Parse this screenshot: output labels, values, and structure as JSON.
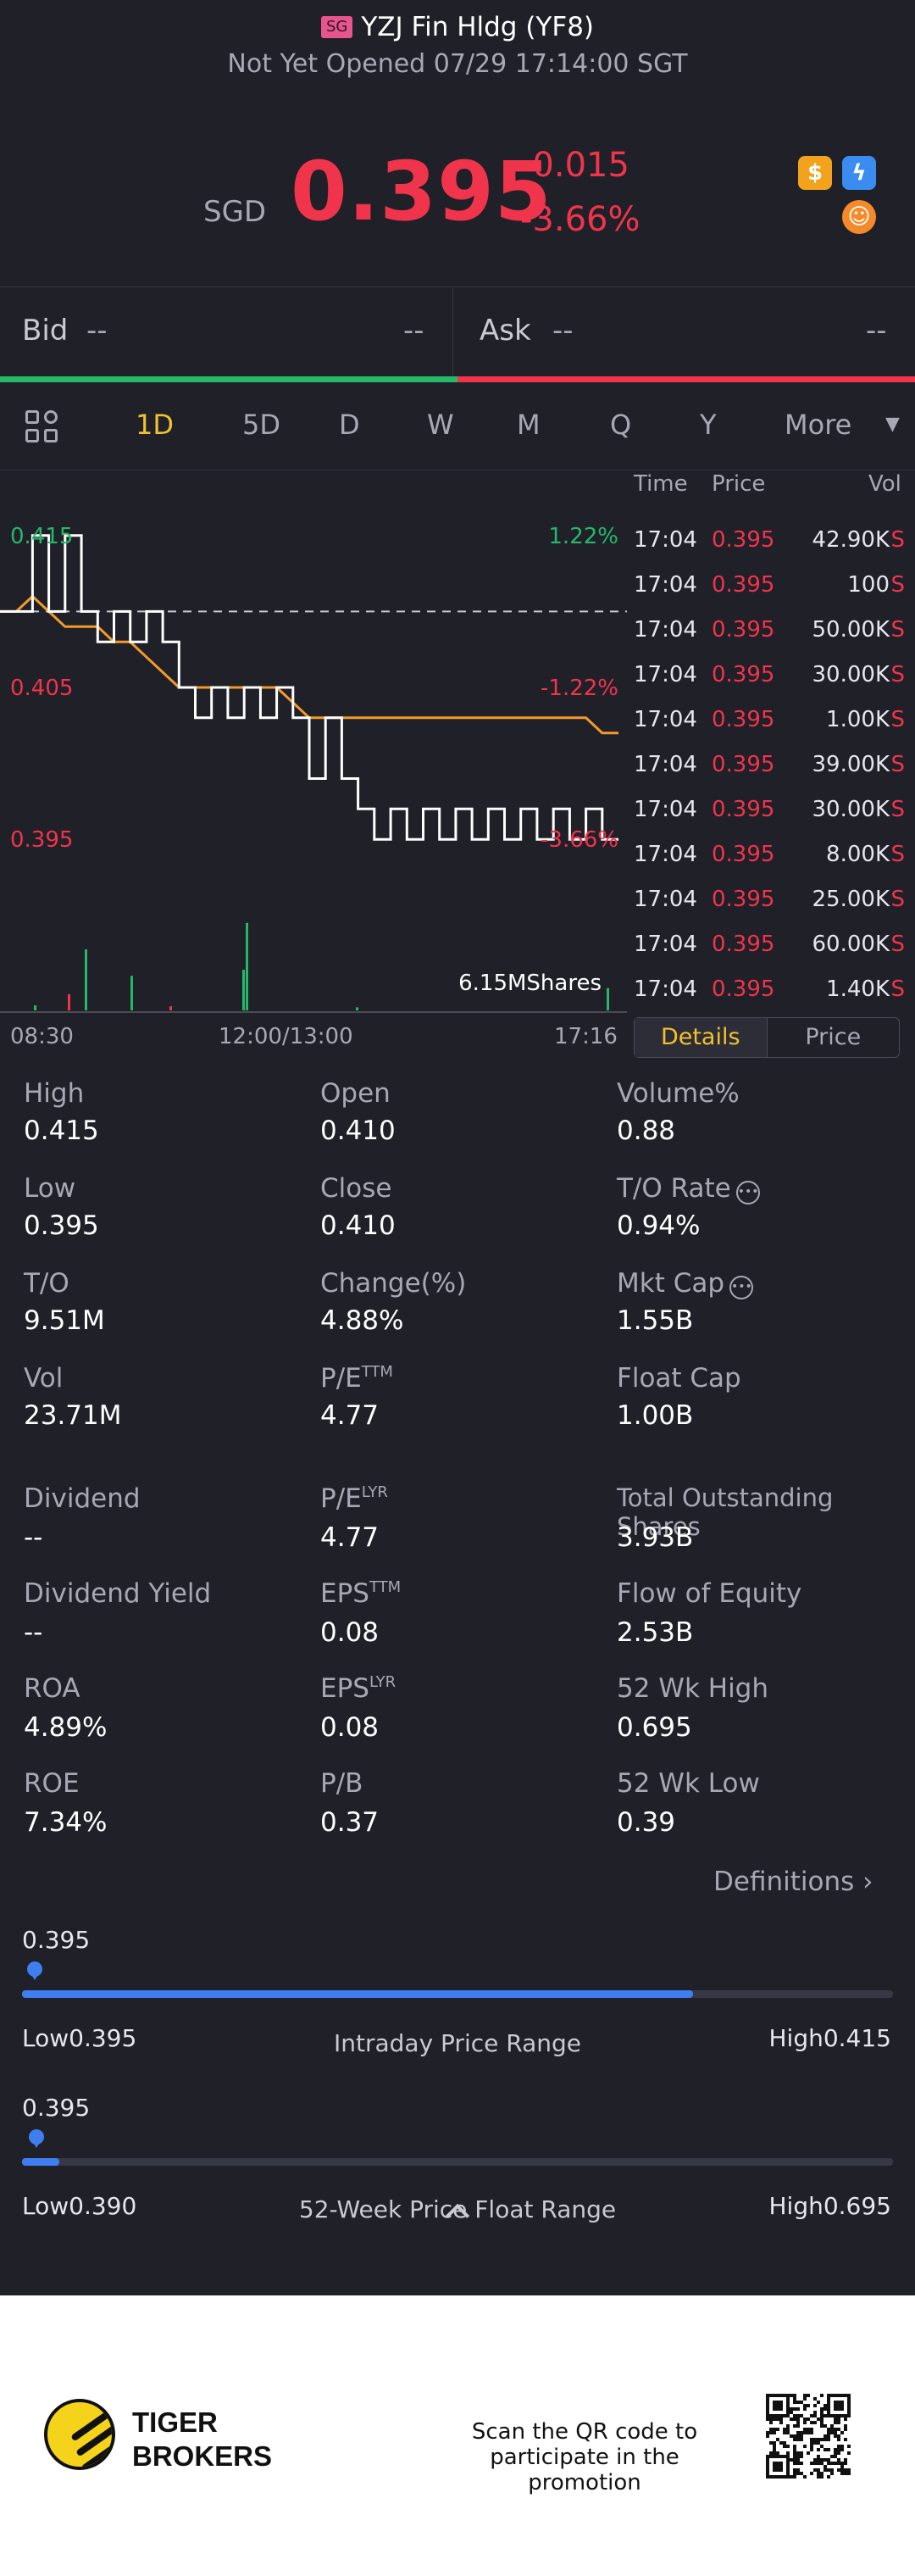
{
  "header": {
    "market_badge": "SG",
    "title": "YZJ Fin Hldg (YF8)",
    "status": "Not Yet Opened 07/29 17:14:00 SGT",
    "currency": "SGD",
    "price": "0.395",
    "change": "-0.015",
    "change_pct": "-3.66%",
    "icons": [
      "dollar-icon",
      "bolt-icon",
      "tiger-icon"
    ]
  },
  "quote": {
    "bid_label": "Bid",
    "bid_price": "--",
    "bid_size": "--",
    "ask_label": "Ask",
    "ask_price": "--",
    "ask_size": "--"
  },
  "tabs": [
    {
      "label": "1D",
      "active": true
    },
    {
      "label": "5D"
    },
    {
      "label": "D"
    },
    {
      "label": "W"
    },
    {
      "label": "M"
    },
    {
      "label": "Q"
    },
    {
      "label": "Y"
    },
    {
      "label": "More"
    }
  ],
  "chart_data": {
    "type": "line",
    "y_left_labels": [
      "0.415",
      "0.405",
      "0.395"
    ],
    "y_right_labels": [
      "1.22%",
      "-1.22%",
      "-3.66%"
    ],
    "x_labels": [
      "08:30",
      "12:00/13:00",
      "17:16"
    ],
    "prev_close": 0.41,
    "ylim": [
      0.393,
      0.417
    ],
    "volume_label": "6.15MShares",
    "series": [
      {
        "values": [
          0.41,
          0.41,
          0.415,
          0.41,
          0.415,
          0.41,
          0.408,
          0.41,
          0.408,
          0.41,
          0.408,
          0.405,
          0.403,
          0.405,
          0.403,
          0.405,
          0.403,
          0.405,
          0.403,
          0.399,
          0.403,
          0.399,
          0.397,
          0.395,
          0.397,
          0.395,
          0.397,
          0.395,
          0.397,
          0.395,
          0.397,
          0.395,
          0.397,
          0.395,
          0.397,
          0.395,
          0.397,
          0.395,
          0.395
        ]
      },
      {
        "values": [
          0.41,
          0.41,
          0.411,
          0.41,
          0.409,
          0.409,
          0.409,
          0.408,
          0.408,
          0.407,
          0.406,
          0.405,
          0.405,
          0.405,
          0.405,
          0.405,
          0.405,
          0.405,
          0.404,
          0.403,
          0.403,
          0.403,
          0.403,
          0.403,
          0.403,
          0.403,
          0.403,
          0.403,
          0.403,
          0.403,
          0.403,
          0.403,
          0.403,
          0.403,
          0.403,
          0.403,
          0.403,
          0.402,
          0.402
        ]
      }
    ]
  },
  "ticks": {
    "headers": {
      "time": "Time",
      "price": "Price",
      "vol": "Vol"
    },
    "rows": [
      {
        "time": "17:04",
        "price": "0.395",
        "vol": "42.90K",
        "side": "S"
      },
      {
        "time": "17:04",
        "price": "0.395",
        "vol": "100",
        "side": "S"
      },
      {
        "time": "17:04",
        "price": "0.395",
        "vol": "50.00K",
        "side": "S"
      },
      {
        "time": "17:04",
        "price": "0.395",
        "vol": "30.00K",
        "side": "S"
      },
      {
        "time": "17:04",
        "price": "0.395",
        "vol": "1.00K",
        "side": "S"
      },
      {
        "time": "17:04",
        "price": "0.395",
        "vol": "39.00K",
        "side": "S"
      },
      {
        "time": "17:04",
        "price": "0.395",
        "vol": "30.00K",
        "side": "S"
      },
      {
        "time": "17:04",
        "price": "0.395",
        "vol": "8.00K",
        "side": "S"
      },
      {
        "time": "17:04",
        "price": "0.395",
        "vol": "25.00K",
        "side": "S"
      },
      {
        "time": "17:04",
        "price": "0.395",
        "vol": "60.00K",
        "side": "S"
      },
      {
        "time": "17:04",
        "price": "0.395",
        "vol": "1.40K",
        "side": "S"
      }
    ],
    "details_label": "Details",
    "price_label": "Price"
  },
  "stats": {
    "high": {
      "label": "High",
      "value": "0.415"
    },
    "open": {
      "label": "Open",
      "value": "0.410"
    },
    "volume_pct": {
      "label": "Volume%",
      "value": "0.88"
    },
    "low": {
      "label": "Low",
      "value": "0.395"
    },
    "close": {
      "label": "Close",
      "value": "0.410"
    },
    "to_rate": {
      "label": "T/O Rate",
      "value": "0.94%"
    },
    "to": {
      "label": "T/O",
      "value": "9.51M"
    },
    "change_pct": {
      "label": "Change(%)",
      "value": "4.88%"
    },
    "mkt_cap": {
      "label": "Mkt Cap",
      "value": "1.55B"
    },
    "vol": {
      "label": "Vol",
      "value": "23.71M"
    },
    "pe_ttm": {
      "label": "P/E",
      "sup": "TTM",
      "value": "4.77"
    },
    "float_cap": {
      "label": "Float Cap",
      "value": "1.00B"
    },
    "dividend": {
      "label": "Dividend",
      "value": "--"
    },
    "pe_lyr": {
      "label": "P/E",
      "sup": "LYR",
      "value": "4.77"
    },
    "total_shares": {
      "label": "Total Outstanding Shares",
      "value": "3.93B"
    },
    "div_yield": {
      "label": "Dividend Yield",
      "value": "--"
    },
    "eps_ttm": {
      "label": "EPS",
      "sup": "TTM",
      "value": "0.08"
    },
    "flow_equity": {
      "label": "Flow of Equity",
      "value": "2.53B"
    },
    "roa": {
      "label": "ROA",
      "value": "4.89%"
    },
    "eps_lyr": {
      "label": "EPS",
      "sup": "LYR",
      "value": "0.08"
    },
    "wk52_high": {
      "label": "52 Wk High",
      "value": "0.695"
    },
    "roe": {
      "label": "ROE",
      "value": "7.34%"
    },
    "pb": {
      "label": "P/B",
      "value": "0.37"
    },
    "wk52_low": {
      "label": "52 Wk Low",
      "value": "0.39"
    },
    "definitions": "Definitions"
  },
  "ranges": {
    "intraday": {
      "current": "0.395",
      "low": "Low0.395",
      "high": "High0.415",
      "caption": "Intraday Price Range",
      "fill_fraction": 0.77
    },
    "week52": {
      "current": "0.395",
      "low": "Low0.390",
      "high": "High0.695",
      "caption": "52-Week Price Float Range",
      "fill_fraction": 0.043
    }
  },
  "footer": {
    "brand_line1": "TIGER",
    "brand_line2": "BROKERS",
    "promo_line1": "Scan the QR code to",
    "promo_line2": "participate in the promotion"
  }
}
